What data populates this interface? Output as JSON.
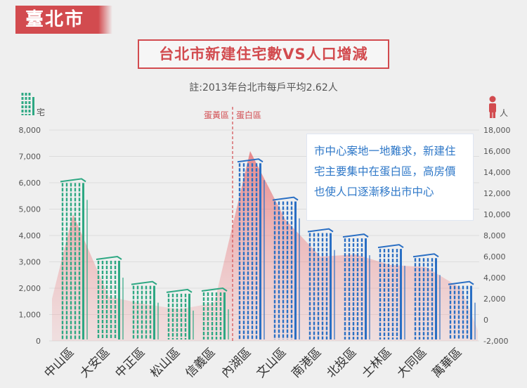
{
  "city_label": "臺北市",
  "chart_data": {
    "type": "bar+area",
    "title": "台北市新建住宅數VS人口增減",
    "note": "註:2013年台北市每戶平均2.62人",
    "left_axis": {
      "unit": "宅",
      "range": [
        0,
        8000
      ],
      "ticks": [
        "0",
        "1,000",
        "2,000",
        "3,000",
        "4,000",
        "5,000",
        "6,000",
        "7,000",
        "8,000"
      ]
    },
    "right_axis": {
      "unit": "人",
      "range": [
        -2000,
        18000
      ],
      "ticks": [
        "-2,000",
        "0",
        "2,000",
        "4,000",
        "6,000",
        "8,000",
        "10,000",
        "12,000",
        "14,000",
        "16,000",
        "18,000"
      ]
    },
    "categories": [
      "中山區",
      "大安區",
      "中正區",
      "松山區",
      "信義區",
      "內湖區",
      "文山區",
      "南港區",
      "北投區",
      "士林區",
      "大同區",
      "萬華區"
    ],
    "series": [
      {
        "name": "新建住宅數",
        "axis": "left",
        "render": "building-bars",
        "values": [
          6150,
          3200,
          2250,
          1950,
          2000,
          6900,
          5450,
          4250,
          4050,
          3650,
          3300,
          2250
        ]
      },
      {
        "name": "人口增減",
        "axis": "right",
        "render": "area",
        "values": [
          10000,
          2200,
          1500,
          1000,
          1600,
          16000,
          9500,
          6000,
          6200,
          5200,
          5000,
          3000
        ]
      }
    ],
    "divider": {
      "after_category": "信義區",
      "left_label": "蛋黃區",
      "right_label": "蛋白區"
    },
    "annotation": "市中心案地一地難求，新建住宅主要集中在蛋白區，高房價也使人口逐漸移出市中心"
  },
  "colors": {
    "accent": "#d24b4f",
    "building_green": "#2ea883",
    "building_blue": "#2a6fc4",
    "annotation_text": "#2f78c8"
  }
}
